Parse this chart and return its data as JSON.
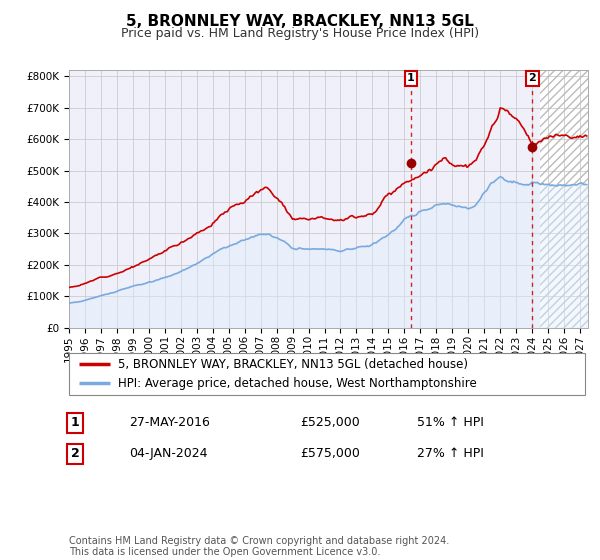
{
  "title": "5, BRONNLEY WAY, BRACKLEY, NN13 5GL",
  "subtitle": "Price paid vs. HM Land Registry's House Price Index (HPI)",
  "ylim": [
    0,
    820000
  ],
  "xlim_start": 1995.0,
  "xlim_end": 2027.5,
  "yticks": [
    0,
    100000,
    200000,
    300000,
    400000,
    500000,
    600000,
    700000,
    800000
  ],
  "ytick_labels": [
    "£0",
    "£100K",
    "£200K",
    "£300K",
    "£400K",
    "£500K",
    "£600K",
    "£700K",
    "£800K"
  ],
  "xtick_years": [
    1995,
    1996,
    1997,
    1998,
    1999,
    2000,
    2001,
    2002,
    2003,
    2004,
    2005,
    2006,
    2007,
    2008,
    2009,
    2010,
    2011,
    2012,
    2013,
    2014,
    2015,
    2016,
    2017,
    2018,
    2019,
    2020,
    2021,
    2022,
    2023,
    2024,
    2025,
    2026,
    2027
  ],
  "red_line_color": "#cc0000",
  "blue_line_color": "#7aaadd",
  "blue_fill_color": "#ddeeff",
  "background_color": "#f0f0fa",
  "grid_color": "#cccccc",
  "marker1_x": 2016.41,
  "marker1_y": 525000,
  "marker2_x": 2024.01,
  "marker2_y": 575000,
  "vline1_x": 2016.41,
  "vline2_x": 2024.01,
  "hatch_start": 2024.5,
  "legend_line1": "5, BRONNLEY WAY, BRACKLEY, NN13 5GL (detached house)",
  "legend_line2": "HPI: Average price, detached house, West Northamptonshire",
  "table_row1_num": "1",
  "table_row1_date": "27-MAY-2016",
  "table_row1_price": "£525,000",
  "table_row1_hpi": "51% ↑ HPI",
  "table_row2_num": "2",
  "table_row2_date": "04-JAN-2024",
  "table_row2_price": "£575,000",
  "table_row2_hpi": "27% ↑ HPI",
  "footer": "Contains HM Land Registry data © Crown copyright and database right 2024.\nThis data is licensed under the Open Government Licence v3.0.",
  "title_fontsize": 11,
  "subtitle_fontsize": 9,
  "tick_fontsize": 7.5,
  "legend_fontsize": 8.5,
  "table_fontsize": 9
}
